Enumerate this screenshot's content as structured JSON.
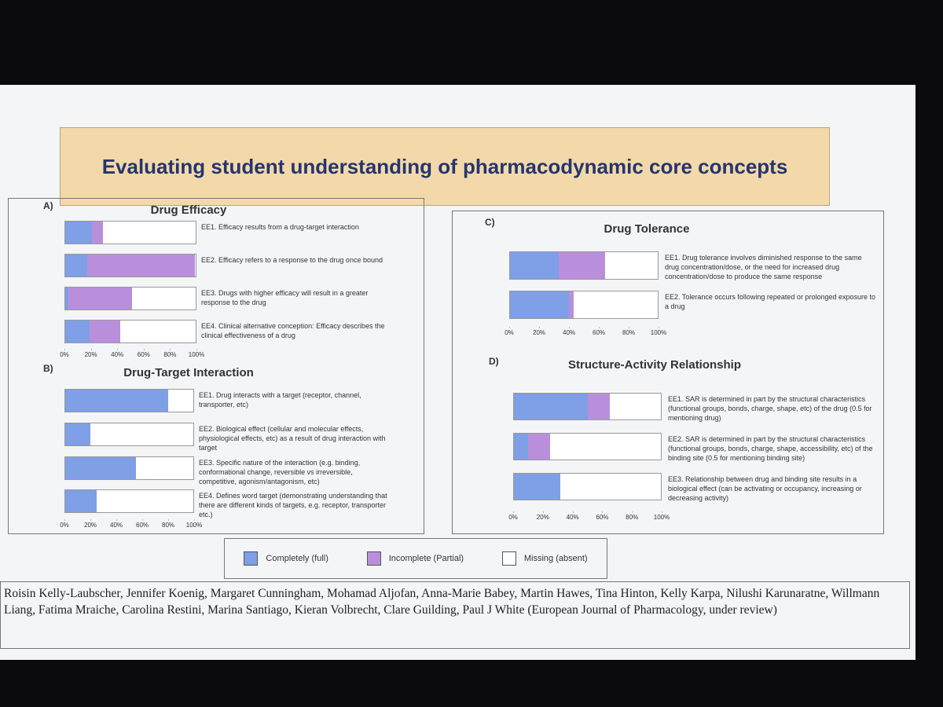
{
  "title": "Evaluating student understanding of pharmacodynamic core concepts",
  "authors": "Roisin Kelly-Laubscher, Jennifer Koenig, Margaret Cunningham, Mohamad Aljofan, Anna-Marie Babey, Martin Hawes, Tina Hinton, Kelly Karpa, Nilushi Karunaratne, Willmann Liang, Fatima Mraiche, Carolina Restini, Marina Santiago, Kieran Volbrecht, Clare Guilding, Paul J White (European Journal of Pharmacology, under review)",
  "chart_data": [
    {
      "type": "stacked-bar",
      "panel": "A)",
      "title": "Drug Efficacy",
      "categories": [
        "EE1. Efficacy results from a drug-target interaction",
        "EE2. Efficacy refers to a response to the drug once bound",
        "EE3. Drugs with higher efficacy will result in a greater response to the drug",
        "EE4. Clinical alternative conception: Efficacy describes the clinical effectiveness of a drug"
      ],
      "series": [
        {
          "name": "Completely (full)",
          "color": "#7f9fe6",
          "values": [
            21,
            17,
            3,
            19
          ]
        },
        {
          "name": "Incomplete (Partial)",
          "color": "#b98fdc",
          "values": [
            8,
            82,
            48,
            23
          ]
        },
        {
          "name": "Missing (absent)",
          "color": "#ffffff",
          "values": [
            71,
            1,
            49,
            58
          ]
        }
      ],
      "xlim": [
        0,
        100
      ],
      "xticks": [
        {
          "value": 0,
          "label": "0%"
        },
        {
          "value": 20,
          "label": "20%"
        },
        {
          "value": 40,
          "label": "40%"
        },
        {
          "value": 60,
          "label": "60%"
        },
        {
          "value": 80,
          "label": "80%"
        },
        {
          "value": 100,
          "label": "100%"
        }
      ]
    },
    {
      "type": "stacked-bar",
      "panel": "B)",
      "title": "Drug-Target Interaction",
      "categories": [
        "EE1. Drug interacts with a target (receptor, channel, transporter, etc)",
        "EE2. Biological effect (cellular and molecular effects, physiological effects, etc) as a result of drug interaction with target",
        "EE3. Specific nature of the interaction (e.g. binding, conformational change, reversible vs irreversible, competitive, agonism/antagonism, etc)",
        "EE4. Defines word target (demonstrating understanding that there are different kinds of targets, e.g. receptor, transporter etc.)"
      ],
      "series": [
        {
          "name": "Completely (full)",
          "color": "#7f9fe6",
          "values": [
            80,
            20,
            55,
            25
          ]
        },
        {
          "name": "Incomplete (Partial)",
          "color": "#b98fdc",
          "values": [
            0,
            0,
            0,
            0
          ]
        },
        {
          "name": "Missing (absent)",
          "color": "#ffffff",
          "values": [
            20,
            80,
            45,
            75
          ]
        }
      ],
      "xlim": [
        0,
        100
      ],
      "xticks": [
        {
          "value": 0,
          "label": "0%"
        },
        {
          "value": 20,
          "label": "20%"
        },
        {
          "value": 40,
          "label": "40%"
        },
        {
          "value": 60,
          "label": "60%"
        },
        {
          "value": 80,
          "label": "80%"
        },
        {
          "value": 100,
          "label": "100%"
        }
      ]
    },
    {
      "type": "stacked-bar",
      "panel": "C)",
      "title": "Drug Tolerance",
      "categories": [
        "EE1. Drug tolerance involves diminished response to the same drug concentration/dose, or the need for increased drug concentration/dose to produce the same response",
        "EE2. Tolerance occurs following repeated or prolonged exposure to a drug"
      ],
      "series": [
        {
          "name": "Completely (full)",
          "color": "#7f9fe6",
          "values": [
            33,
            40
          ]
        },
        {
          "name": "Incomplete (Partial)",
          "color": "#b98fdc",
          "values": [
            31,
            3
          ]
        },
        {
          "name": "Missing (absent)",
          "color": "#ffffff",
          "values": [
            36,
            57
          ]
        }
      ],
      "xlim": [
        0,
        100
      ],
      "xticks": [
        {
          "value": 0,
          "label": "0%"
        },
        {
          "value": 20,
          "label": "20%"
        },
        {
          "value": 40,
          "label": "40%"
        },
        {
          "value": 60,
          "label": "60%"
        },
        {
          "value": 80,
          "label": "80%"
        },
        {
          "value": 100,
          "label": "100%"
        }
      ]
    },
    {
      "type": "stacked-bar",
      "panel": "D)",
      "title": "Structure-Activity Relationship",
      "categories": [
        "EE1. SAR is determined in part by the structural characteristics (functional groups, bonds, charge, shape, etc) of the drug (0.5 for mentioning drug)",
        "EE2. SAR is determined in part by the structural characteristics (functional groups, bonds, charge, shape, accessibility, etc) of the binding site (0.5 for mentioning binding site)",
        "EE3. Relationship between drug and binding site results in a biological effect (can be activating or occupancy, increasing or decreasing activity)"
      ],
      "series": [
        {
          "name": "Completely (full)",
          "color": "#7f9fe6",
          "values": [
            50,
            10,
            32
          ]
        },
        {
          "name": "Incomplete (Partial)",
          "color": "#b98fdc",
          "values": [
            15,
            15,
            0
          ]
        },
        {
          "name": "Missing (absent)",
          "color": "#ffffff",
          "values": [
            35,
            75,
            68
          ]
        }
      ],
      "xlim": [
        0,
        100
      ],
      "xticks": [
        {
          "value": 0,
          "label": "0%"
        },
        {
          "value": 20,
          "label": "20%"
        },
        {
          "value": 40,
          "label": "40%"
        },
        {
          "value": 60,
          "label": "60%"
        },
        {
          "value": 80,
          "label": "80%"
        },
        {
          "value": 100,
          "label": "100%"
        }
      ]
    }
  ]
}
